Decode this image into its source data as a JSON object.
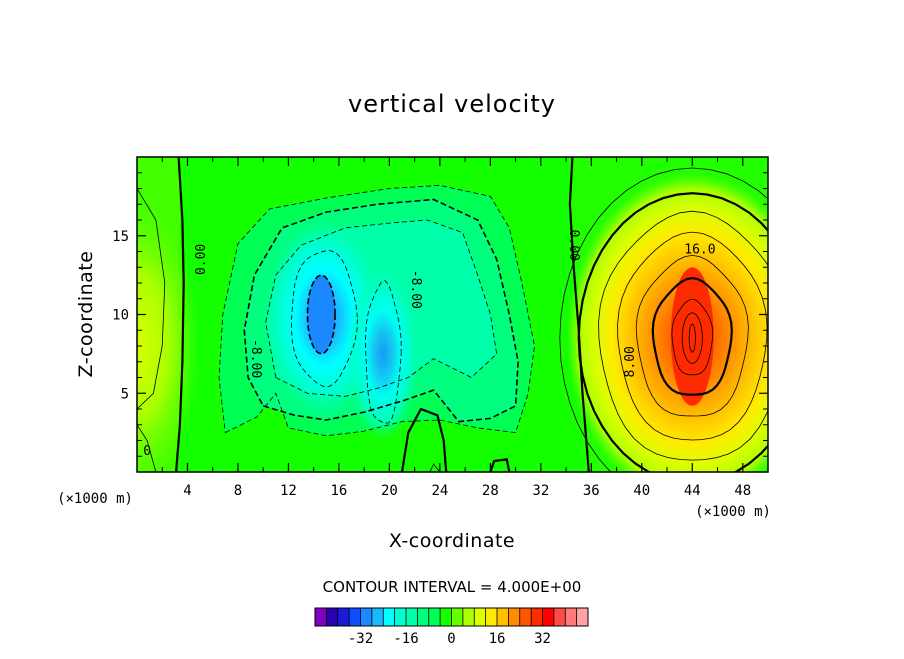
{
  "chart_data": {
    "type": "contour",
    "title": "vertical velocity",
    "xlabel": "X-coordinate",
    "ylabel": "Z-coordinate",
    "x_unit": "(×1000 m)",
    "y_unit": "(×1000 m)",
    "xlim": [
      0,
      50
    ],
    "ylim": [
      0,
      20
    ],
    "x_ticks": [
      4,
      8,
      12,
      16,
      20,
      24,
      28,
      32,
      36,
      40,
      44,
      48
    ],
    "y_ticks": [
      5,
      10,
      15
    ],
    "contour_interval_text": "CONTOUR INTERVAL = 4.000E+00",
    "contour_interval": 4,
    "contour_labels": [
      {
        "text": "0.00",
        "x": 5.0,
        "z": 13.5,
        "rotate": -90
      },
      {
        "text": "-8.00",
        "x": 9.5,
        "z": 7.2,
        "rotate": 90
      },
      {
        "text": "-8.00",
        "x": 22.2,
        "z": 11.6,
        "rotate": 90
      },
      {
        "text": "0.00",
        "x": 34.7,
        "z": 14.4,
        "rotate": 90
      },
      {
        "text": "8.00",
        "x": 39.0,
        "z": 7.0,
        "rotate": -90
      },
      {
        "text": "16.0",
        "x": 44.6,
        "z": 14.2,
        "rotate": 0
      },
      {
        "text": "0",
        "x": 0.8,
        "z": 1.4,
        "rotate": 0
      }
    ],
    "field_centers": [
      {
        "x": 44,
        "z": 8.5,
        "value": 34
      },
      {
        "x": 14.8,
        "z": 9.8,
        "value": -22
      },
      {
        "x": 19.5,
        "z": 7.5,
        "value": -17
      },
      {
        "x": 0,
        "z": 8,
        "value": 11
      }
    ],
    "colorbar": {
      "colors": [
        "#7f00bf",
        "#2a00b0",
        "#1a1ad8",
        "#0d4dff",
        "#1a88ff",
        "#1ab8ff",
        "#00ffff",
        "#00ffd2",
        "#00ffaa",
        "#00ff7f",
        "#00ff55",
        "#14ff00",
        "#69ff00",
        "#aaff00",
        "#d9ff00",
        "#ffeb00",
        "#ffc000",
        "#ff8c00",
        "#ff5500",
        "#ff2b00",
        "#ff0000",
        "#ff4a4a",
        "#ff7a7a",
        "#ffa3a3"
      ],
      "tick_labels": [
        "-32",
        "-16",
        "0",
        "16",
        "32"
      ],
      "tick_values": [
        -32,
        -16,
        0,
        16,
        32
      ],
      "range": [
        -48,
        48
      ]
    }
  }
}
